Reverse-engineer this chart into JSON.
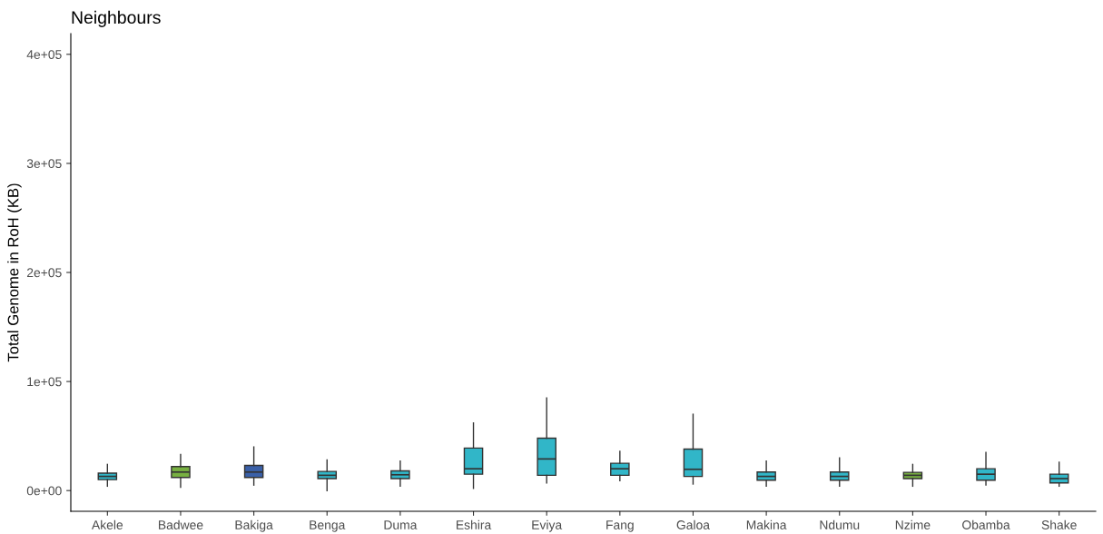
{
  "chart_data": {
    "type": "box",
    "title": "Neighbours",
    "ylabel": "Total Genome in RoH (KB)",
    "categories": [
      "Akele",
      "Badwee",
      "Bakiga",
      "Benga",
      "Duma",
      "Eshira",
      "Eviya",
      "Fang",
      "Galoa",
      "Makina",
      "Ndumu",
      "Nzime",
      "Obamba",
      "Shake"
    ],
    "colors": [
      "#31b6c8",
      "#77b041",
      "#3a60a8",
      "#31b6c8",
      "#31b6c8",
      "#31b6c8",
      "#31b6c8",
      "#31b6c8",
      "#31b6c8",
      "#31b6c8",
      "#31b6c8",
      "#77b041",
      "#31b6c8",
      "#31b6c8"
    ],
    "boxes": [
      {
        "low": 4000,
        "q1": 10000,
        "median": 13000,
        "q3": 16000,
        "high": 24000
      },
      {
        "low": 3000,
        "q1": 12000,
        "median": 17000,
        "q3": 22000,
        "high": 33000
      },
      {
        "low": 5000,
        "q1": 12000,
        "median": 17000,
        "q3": 23000,
        "high": 40000
      },
      {
        "low": 0,
        "q1": 11000,
        "median": 14000,
        "q3": 17500,
        "high": 28000
      },
      {
        "low": 4000,
        "q1": 11000,
        "median": 14500,
        "q3": 18000,
        "high": 27000
      },
      {
        "low": 2000,
        "q1": 15000,
        "median": 20000,
        "q3": 39000,
        "high": 62000
      },
      {
        "low": 7000,
        "q1": 14000,
        "median": 29000,
        "q3": 48000,
        "high": 85000
      },
      {
        "low": 9000,
        "q1": 14000,
        "median": 20000,
        "q3": 25000,
        "high": 36000
      },
      {
        "low": 6000,
        "q1": 13000,
        "median": 19500,
        "q3": 38000,
        "high": 70000
      },
      {
        "low": 4000,
        "q1": 9500,
        "median": 13000,
        "q3": 17000,
        "high": 27000
      },
      {
        "low": 4000,
        "q1": 9500,
        "median": 13000,
        "q3": 17000,
        "high": 30000
      },
      {
        "low": 4000,
        "q1": 11000,
        "median": 14000,
        "q3": 16700,
        "high": 24000
      },
      {
        "low": 5000,
        "q1": 9500,
        "median": 15000,
        "q3": 20000,
        "high": 35000
      },
      {
        "low": 4000,
        "q1": 7000,
        "median": 11000,
        "q3": 15000,
        "high": 26000
      }
    ],
    "ylim": [
      -19000,
      419000
    ],
    "yticks": [
      {
        "value": 0,
        "label": "0e+00"
      },
      {
        "value": 100000,
        "label": "1e+05"
      },
      {
        "value": 200000,
        "label": "2e+05"
      },
      {
        "value": 300000,
        "label": "3e+05"
      },
      {
        "value": 400000,
        "label": "4e+05"
      }
    ],
    "grid": false
  }
}
